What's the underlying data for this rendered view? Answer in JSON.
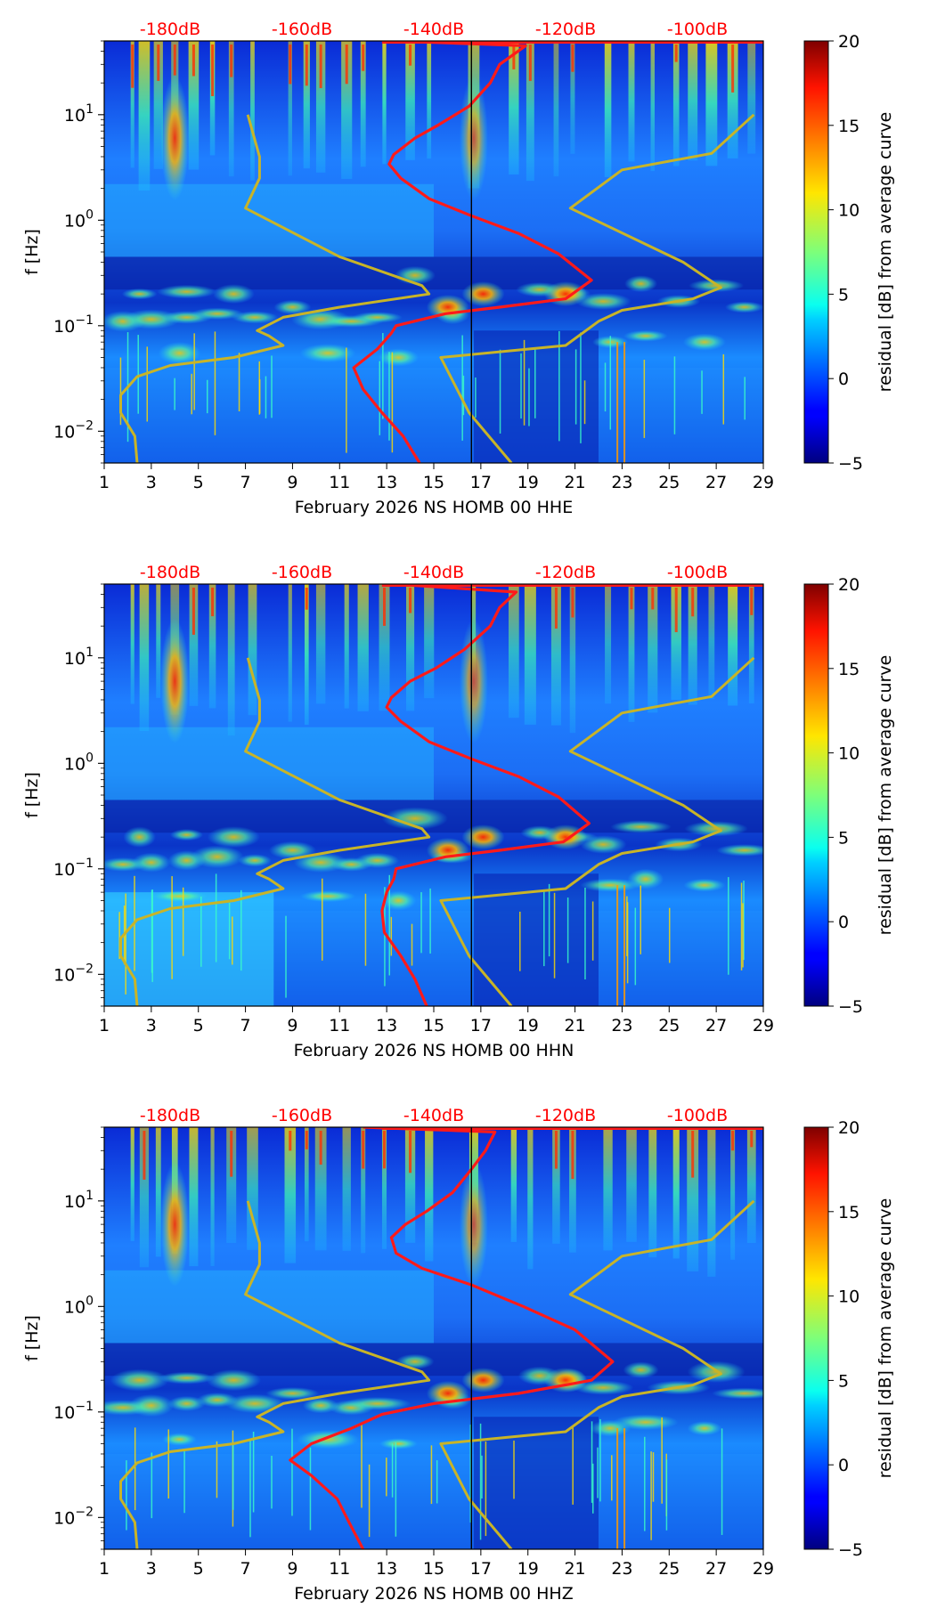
{
  "chart_data": [
    {
      "type": "heatmap",
      "title": "",
      "xlabel": "February 2026 NS HOMB 00 HHE",
      "ylabel": "f [Hz]",
      "x_ticks": [
        "1",
        "3",
        "5",
        "7",
        "9",
        "11",
        "13",
        "15",
        "17",
        "19",
        "21",
        "23",
        "25",
        "27",
        "29"
      ],
      "xlim": [
        1,
        29
      ],
      "y_scale": "log",
      "ylim": [
        0.005,
        50
      ],
      "y_tick_labels": [
        "10^-2",
        "10^-1",
        "10^0",
        "10^1"
      ],
      "colorbar": {
        "label": "residual [dB] from average curve",
        "range": [
          -5,
          20
        ],
        "ticks": [
          "−5",
          "0",
          "5",
          "10",
          "15",
          "20"
        ],
        "colormap": "jet"
      },
      "top_db_labels": [
        "-180dB",
        "-160dB",
        "-140dB",
        "-120dB",
        "-100dB"
      ],
      "day_marker": 16.6,
      "curves": [
        {
          "color": "#ff1a1a",
          "points": [
            [
              13.3,
              50
            ],
            [
              18.9,
              45
            ],
            [
              17.8,
              30
            ],
            [
              17.4,
              20
            ],
            [
              16.5,
              12
            ],
            [
              15.2,
              8
            ],
            [
              14.2,
              6
            ],
            [
              13.3,
              4.2
            ],
            [
              13.1,
              3.4
            ],
            [
              13.6,
              2.5
            ],
            [
              14.8,
              1.6
            ],
            [
              16.6,
              1.1
            ],
            [
              18.6,
              0.75
            ],
            [
              20.3,
              0.48
            ],
            [
              21.7,
              0.27
            ],
            [
              20.6,
              0.18
            ],
            [
              17.8,
              0.15
            ],
            [
              15.5,
              0.13
            ],
            [
              13.4,
              0.1
            ],
            [
              13.2,
              0.085
            ],
            [
              12.6,
              0.06
            ],
            [
              11.6,
              0.04
            ],
            [
              12.0,
              0.025
            ],
            [
              12.8,
              0.015
            ],
            [
              13.7,
              0.009
            ],
            [
              14.4,
              0.005
            ]
          ]
        },
        {
          "color": "#c8b428",
          "points": [
            [
              2.4,
              0.005
            ],
            [
              2.3,
              0.009
            ],
            [
              1.7,
              0.015
            ],
            [
              1.7,
              0.022
            ],
            [
              2.4,
              0.033
            ],
            [
              3.8,
              0.042
            ],
            [
              6.5,
              0.05
            ],
            [
              8.6,
              0.065
            ],
            [
              8.0,
              0.08
            ],
            [
              7.5,
              0.09
            ],
            [
              8.6,
              0.12
            ],
            [
              11.0,
              0.15
            ],
            [
              14.8,
              0.2
            ],
            [
              14.5,
              0.24
            ],
            [
              11.0,
              0.45
            ],
            [
              7.0,
              1.3
            ],
            [
              7.6,
              2.5
            ],
            [
              7.6,
              4.0
            ],
            [
              7.1,
              10
            ]
          ]
        },
        {
          "color": "#c8b428",
          "points": [
            [
              18.3,
              0.005
            ],
            [
              16.5,
              0.015
            ],
            [
              15.3,
              0.05
            ],
            [
              20.6,
              0.065
            ],
            [
              22.0,
              0.11
            ],
            [
              23.0,
              0.14
            ],
            [
              26.0,
              0.18
            ],
            [
              27.2,
              0.23
            ],
            [
              25.6,
              0.4
            ],
            [
              20.8,
              1.3
            ],
            [
              23.0,
              3.0
            ],
            [
              26.8,
              4.3
            ],
            [
              28.6,
              10
            ]
          ]
        }
      ]
    },
    {
      "type": "heatmap",
      "title": "",
      "xlabel": "February 2026 NS HOMB 00 HHN",
      "ylabel": "f [Hz]",
      "x_ticks": [
        "1",
        "3",
        "5",
        "7",
        "9",
        "11",
        "13",
        "15",
        "17",
        "19",
        "21",
        "23",
        "25",
        "27",
        "29"
      ],
      "xlim": [
        1,
        29
      ],
      "y_scale": "log",
      "ylim": [
        0.005,
        50
      ],
      "y_tick_labels": [
        "10^-2",
        "10^-1",
        "10^0",
        "10^1"
      ],
      "colorbar": {
        "label": "residual [dB] from average curve",
        "range": [
          -5,
          20
        ],
        "ticks": [
          "−5",
          "0",
          "5",
          "10",
          "15",
          "20"
        ],
        "colormap": "jet"
      },
      "top_db_labels": [
        "-180dB",
        "-160dB",
        "-140dB",
        "-120dB",
        "-100dB"
      ],
      "day_marker": 16.6,
      "curves": [
        {
          "color": "#ff1a1a",
          "points": [
            [
              13.3,
              50
            ],
            [
              18.5,
              42
            ],
            [
              17.8,
              30
            ],
            [
              17.4,
              20
            ],
            [
              16.3,
              12
            ],
            [
              15.1,
              8
            ],
            [
              14.0,
              6
            ],
            [
              13.2,
              4.2
            ],
            [
              13.0,
              3.4
            ],
            [
              13.6,
              2.5
            ],
            [
              14.8,
              1.6
            ],
            [
              16.6,
              1.1
            ],
            [
              18.6,
              0.75
            ],
            [
              20.3,
              0.48
            ],
            [
              21.6,
              0.27
            ],
            [
              20.5,
              0.18
            ],
            [
              17.8,
              0.15
            ],
            [
              15.5,
              0.13
            ],
            [
              13.4,
              0.1
            ],
            [
              13.3,
              0.08
            ],
            [
              13.0,
              0.06
            ],
            [
              12.8,
              0.04
            ],
            [
              12.9,
              0.025
            ],
            [
              13.6,
              0.015
            ],
            [
              14.2,
              0.009
            ],
            [
              14.7,
              0.005
            ]
          ]
        },
        {
          "color": "#c8b428",
          "points": [
            [
              2.4,
              0.005
            ],
            [
              2.3,
              0.009
            ],
            [
              1.7,
              0.015
            ],
            [
              1.7,
              0.022
            ],
            [
              2.4,
              0.033
            ],
            [
              3.8,
              0.042
            ],
            [
              6.5,
              0.05
            ],
            [
              8.6,
              0.065
            ],
            [
              8.0,
              0.08
            ],
            [
              7.5,
              0.09
            ],
            [
              8.6,
              0.12
            ],
            [
              11.0,
              0.15
            ],
            [
              14.8,
              0.2
            ],
            [
              14.5,
              0.24
            ],
            [
              11.0,
              0.45
            ],
            [
              7.0,
              1.3
            ],
            [
              7.6,
              2.5
            ],
            [
              7.6,
              4.0
            ],
            [
              7.1,
              10
            ]
          ]
        },
        {
          "color": "#c8b428",
          "points": [
            [
              18.3,
              0.005
            ],
            [
              16.5,
              0.015
            ],
            [
              15.3,
              0.05
            ],
            [
              20.6,
              0.065
            ],
            [
              22.0,
              0.11
            ],
            [
              23.0,
              0.14
            ],
            [
              26.0,
              0.18
            ],
            [
              27.2,
              0.23
            ],
            [
              25.6,
              0.4
            ],
            [
              20.8,
              1.3
            ],
            [
              23.0,
              3.0
            ],
            [
              26.8,
              4.3
            ],
            [
              28.6,
              10
            ]
          ]
        }
      ]
    },
    {
      "type": "heatmap",
      "title": "",
      "xlabel": "February 2026 NS HOMB 00 HHZ",
      "ylabel": "f [Hz]",
      "x_ticks": [
        "1",
        "3",
        "5",
        "7",
        "9",
        "11",
        "13",
        "15",
        "17",
        "19",
        "21",
        "23",
        "25",
        "27",
        "29"
      ],
      "xlim": [
        1,
        29
      ],
      "y_scale": "log",
      "ylim": [
        0.005,
        50
      ],
      "y_tick_labels": [
        "10^-2",
        "10^-1",
        "10^0",
        "10^1"
      ],
      "colorbar": {
        "label": "residual [dB] from average curve",
        "range": [
          -5,
          20
        ],
        "ticks": [
          "−5",
          "0",
          "5",
          "10",
          "15",
          "20"
        ],
        "colormap": "jet"
      },
      "top_db_labels": [
        "-180dB",
        "-160dB",
        "-140dB",
        "-120dB",
        "-100dB"
      ],
      "day_marker": 16.6,
      "curves": [
        {
          "color": "#ff1a1a",
          "points": [
            [
              12.0,
              50
            ],
            [
              17.6,
              45
            ],
            [
              17.2,
              30
            ],
            [
              16.6,
              20
            ],
            [
              15.8,
              12
            ],
            [
              14.7,
              8
            ],
            [
              13.8,
              6
            ],
            [
              13.2,
              4.5
            ],
            [
              13.4,
              3.2
            ],
            [
              14.5,
              2.3
            ],
            [
              16.6,
              1.6
            ],
            [
              18.8,
              1.0
            ],
            [
              21.0,
              0.6
            ],
            [
              22.6,
              0.3
            ],
            [
              21.7,
              0.2
            ],
            [
              18.6,
              0.15
            ],
            [
              15.0,
              0.12
            ],
            [
              12.8,
              0.095
            ],
            [
              11.5,
              0.07
            ],
            [
              9.8,
              0.05
            ],
            [
              8.9,
              0.035
            ],
            [
              9.8,
              0.025
            ],
            [
              10.9,
              0.015
            ],
            [
              11.4,
              0.009
            ],
            [
              12.0,
              0.005
            ]
          ]
        },
        {
          "color": "#c8b428",
          "points": [
            [
              2.4,
              0.005
            ],
            [
              2.3,
              0.009
            ],
            [
              1.7,
              0.015
            ],
            [
              1.7,
              0.022
            ],
            [
              2.4,
              0.033
            ],
            [
              3.8,
              0.042
            ],
            [
              6.5,
              0.05
            ],
            [
              8.6,
              0.065
            ],
            [
              8.0,
              0.08
            ],
            [
              7.5,
              0.09
            ],
            [
              8.6,
              0.12
            ],
            [
              11.0,
              0.15
            ],
            [
              14.8,
              0.2
            ],
            [
              14.5,
              0.24
            ],
            [
              11.0,
              0.45
            ],
            [
              7.0,
              1.3
            ],
            [
              7.6,
              2.5
            ],
            [
              7.6,
              4.0
            ],
            [
              7.1,
              10
            ]
          ]
        },
        {
          "color": "#c8b428",
          "points": [
            [
              18.3,
              0.005
            ],
            [
              16.5,
              0.015
            ],
            [
              15.3,
              0.05
            ],
            [
              20.6,
              0.065
            ],
            [
              22.0,
              0.11
            ],
            [
              23.0,
              0.14
            ],
            [
              26.0,
              0.18
            ],
            [
              27.2,
              0.23
            ],
            [
              25.6,
              0.4
            ],
            [
              20.8,
              1.3
            ],
            [
              23.0,
              3.0
            ],
            [
              26.8,
              4.3
            ],
            [
              28.6,
              10
            ]
          ]
        }
      ]
    }
  ]
}
